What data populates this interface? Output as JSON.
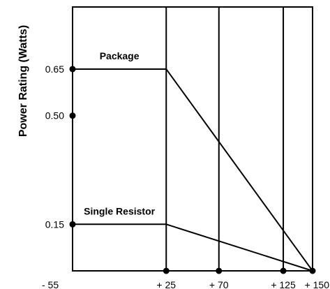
{
  "chart_data": {
    "type": "line",
    "title": "",
    "ylabel": "Power Rating (Watts)",
    "xlabel": "",
    "xlim": [
      -55,
      150
    ],
    "ylim": [
      0,
      0.85
    ],
    "x_ticks": [
      {
        "value": -55,
        "label": "- 55"
      },
      {
        "value": 25,
        "label": "+ 25"
      },
      {
        "value": 70,
        "label": "+ 70"
      },
      {
        "value": 125,
        "label": "+ 125"
      },
      {
        "value": 150,
        "label": "+ 150"
      }
    ],
    "y_ticks": [
      {
        "value": 0.65,
        "label": "0.65"
      },
      {
        "value": 0.5,
        "label": "0.50"
      },
      {
        "value": 0.15,
        "label": "0.15"
      }
    ],
    "vertical_gridlines_at": [
      25,
      70,
      125
    ],
    "grid": true,
    "series": [
      {
        "name": "Package",
        "x": [
          -55,
          25,
          150
        ],
        "y": [
          0.65,
          0.65,
          0
        ]
      },
      {
        "name": "Single Resistor",
        "x": [
          -55,
          25,
          150
        ],
        "y": [
          0.15,
          0.15,
          0
        ]
      }
    ]
  }
}
